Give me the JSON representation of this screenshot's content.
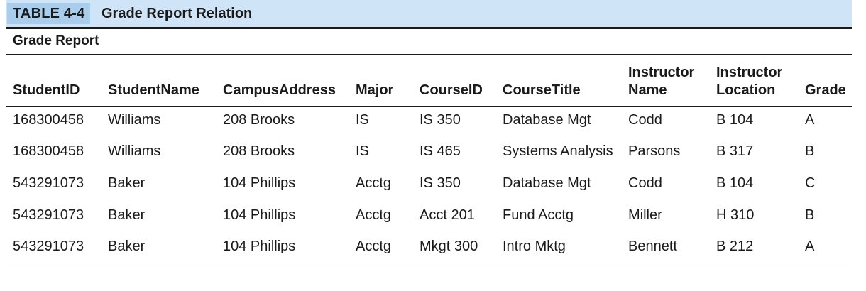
{
  "caption": {
    "label": "TABLE 4-4",
    "title": "Grade Report Relation"
  },
  "relation_name": "Grade Report",
  "table": {
    "columns": [
      {
        "key": "student_id",
        "lines": [
          "StudentID"
        ]
      },
      {
        "key": "student_name",
        "lines": [
          "StudentName"
        ]
      },
      {
        "key": "campus_address",
        "lines": [
          "CampusAddress"
        ]
      },
      {
        "key": "major",
        "lines": [
          "Major"
        ]
      },
      {
        "key": "course_id",
        "lines": [
          "CourseID"
        ]
      },
      {
        "key": "course_title",
        "lines": [
          "CourseTitle"
        ]
      },
      {
        "key": "instructor_name",
        "lines": [
          "Instructor",
          "Name"
        ]
      },
      {
        "key": "instructor_location",
        "lines": [
          "Instructor",
          "Location"
        ]
      },
      {
        "key": "grade",
        "lines": [
          "Grade"
        ]
      }
    ],
    "rows": [
      [
        "168300458",
        "Williams",
        "208 Brooks",
        "IS",
        "IS 350",
        "Database Mgt",
        "Codd",
        "B 104",
        "A"
      ],
      [
        "168300458",
        "Williams",
        "208 Brooks",
        "IS",
        "IS 465",
        "Systems Analysis",
        "Parsons",
        "B 317",
        "B"
      ],
      [
        "543291073",
        "Baker",
        "104 Phillips",
        "Acctg",
        "IS 350",
        "Database Mgt",
        "Codd",
        "B 104",
        "C"
      ],
      [
        "543291073",
        "Baker",
        "104 Phillips",
        "Acctg",
        "Acct 201",
        "Fund Acctg",
        "Miller",
        "H 310",
        "B"
      ],
      [
        "543291073",
        "Baker",
        "104 Phillips",
        "Acctg",
        "Mkgt 300",
        "Intro Mktg",
        "Bennett",
        "B 212",
        "A"
      ]
    ]
  },
  "colors": {
    "band": "#cfe4f6",
    "label_highlight": "#a9cdeb",
    "rules": "#1a1a1a"
  }
}
